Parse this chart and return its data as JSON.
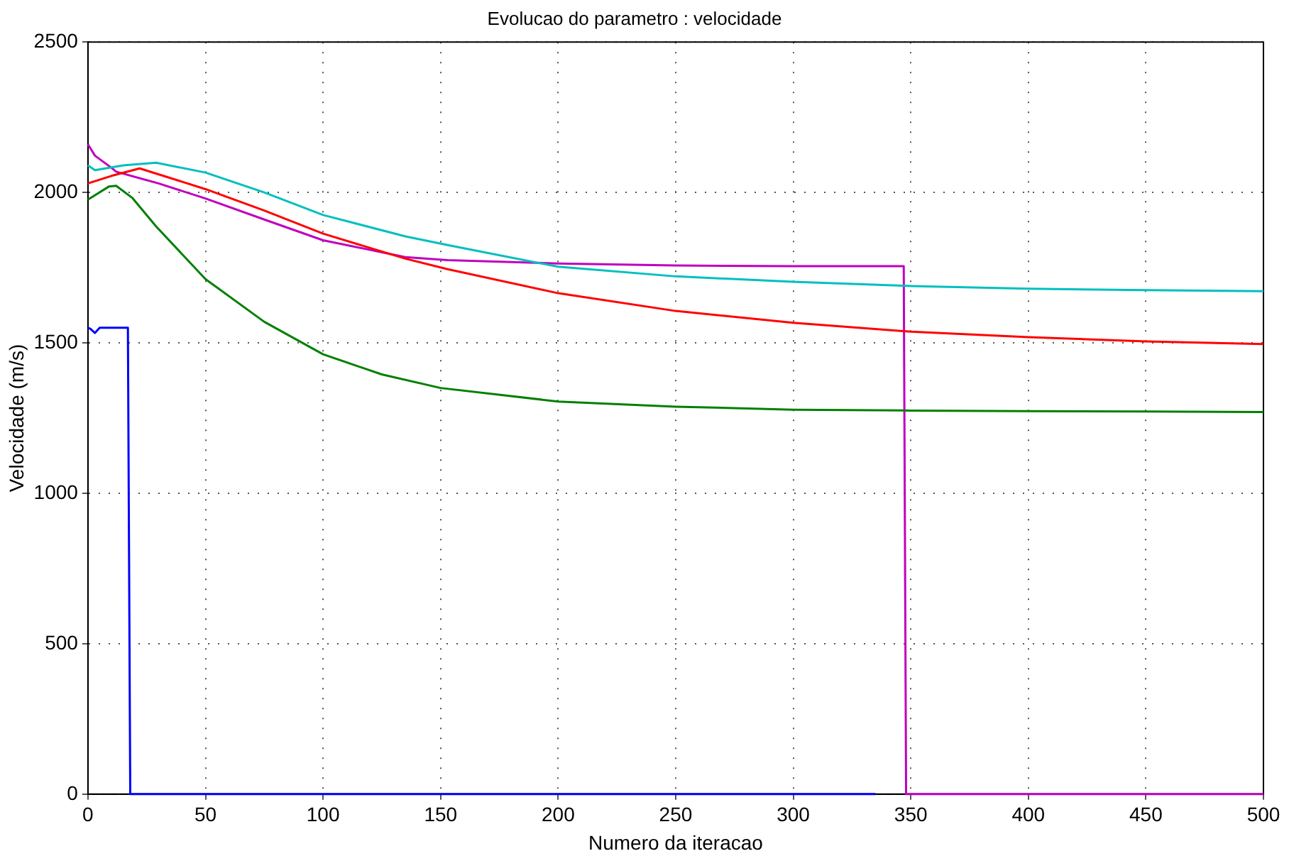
{
  "chart_data": {
    "type": "line",
    "title": "Evolucao do parametro : velocidade",
    "xlabel": "Numero da iteracao",
    "ylabel": "Velocidade (m/s)",
    "xlim": [
      0,
      500
    ],
    "ylim": [
      0,
      2500
    ],
    "xticks": [
      0,
      50,
      100,
      150,
      200,
      250,
      300,
      350,
      400,
      450,
      500
    ],
    "yticks": [
      0,
      500,
      1000,
      1500,
      2000,
      2500
    ],
    "grid": true,
    "legend": false,
    "marker": "none",
    "line_style": "solid",
    "series": [
      {
        "color": "#0000ff",
        "x": [
          0,
          1,
          3,
          5,
          17,
          18,
          335
        ],
        "values": [
          1550,
          1547,
          1533,
          1550,
          1550,
          0,
          0
        ]
      },
      {
        "color": "#008000",
        "x": [
          0,
          9,
          12,
          19,
          29,
          50,
          75,
          100,
          125,
          150,
          200,
          250,
          300,
          350,
          400,
          450,
          500
        ],
        "values": [
          1976,
          2020,
          2022,
          1981,
          1887,
          1712,
          1570,
          1462,
          1395,
          1350,
          1305,
          1288,
          1278,
          1275,
          1273,
          1272,
          1270
        ]
      },
      {
        "color": "#ff0000",
        "x": [
          0,
          10,
          22,
          50,
          75,
          100,
          135,
          153,
          200,
          250,
          300,
          350,
          400,
          450,
          500
        ],
        "values": [
          2030,
          2055,
          2080,
          2011,
          1940,
          1863,
          1780,
          1745,
          1665,
          1606,
          1567,
          1537,
          1519,
          1505,
          1496
        ]
      },
      {
        "color": "#00bfbf",
        "x": [
          0,
          3,
          15,
          29,
          50,
          75,
          100,
          135,
          153,
          200,
          250,
          300,
          350,
          400,
          450,
          500
        ],
        "values": [
          2090,
          2074,
          2090,
          2099,
          2066,
          2000,
          1925,
          1854,
          1825,
          1753,
          1721,
          1703,
          1689,
          1680,
          1675,
          1672
        ]
      },
      {
        "color": "#bf00bf",
        "x": [
          0,
          3,
          10,
          12,
          30,
          50,
          75,
          100,
          135,
          153,
          200,
          250,
          300,
          347,
          348,
          500
        ],
        "values": [
          2160,
          2122,
          2082,
          2069,
          2030,
          1980,
          1910,
          1841,
          1785,
          1775,
          1764,
          1757,
          1755,
          1755,
          0,
          0
        ]
      }
    ]
  }
}
